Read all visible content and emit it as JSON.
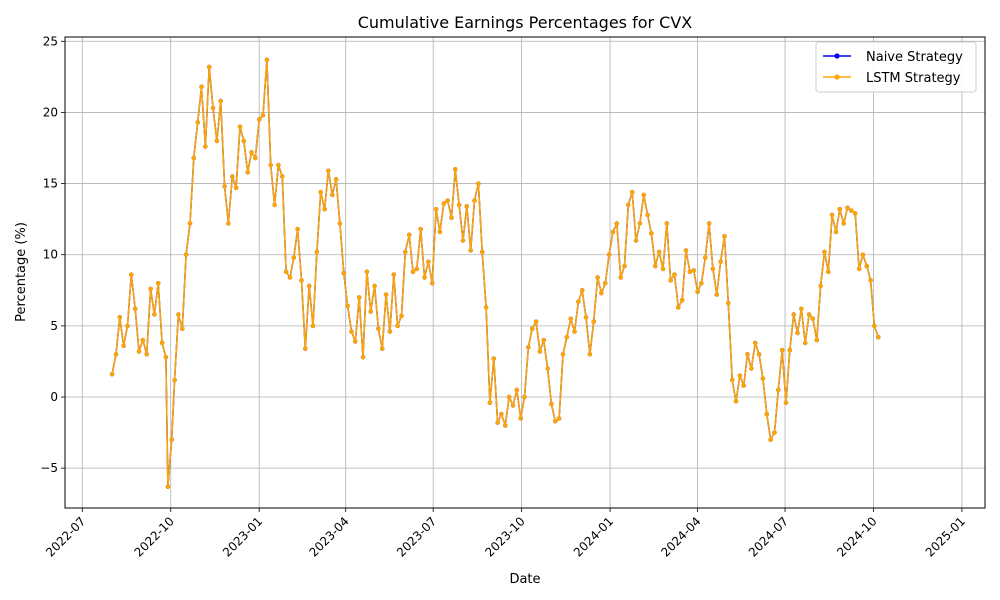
{
  "chart_data": {
    "type": "line",
    "title": "Cumulative Earnings Percentages for CVX",
    "xlabel": "Date",
    "ylabel": "Percentage (%)",
    "xlim": [
      "2022-06-13",
      "2025-01-25"
    ],
    "ylim": [
      -7.8,
      25.3
    ],
    "grid": true,
    "legend_position": "top-right",
    "x_ticks": [
      "2022-07",
      "2022-10",
      "2023-01",
      "2023-04",
      "2023-07",
      "2023-10",
      "2024-01",
      "2024-04",
      "2024-07",
      "2024-10",
      "2025-01"
    ],
    "y_ticks": [
      -5,
      0,
      5,
      10,
      15,
      20,
      25
    ],
    "series": [
      {
        "name": "Naive Strategy",
        "color": "#0000ff",
        "marker": "circle",
        "points": [
          [
            "2022-08-01",
            1.6
          ],
          [
            "2022-08-05",
            3.0
          ],
          [
            "2022-08-09",
            5.6
          ],
          [
            "2022-08-13",
            3.6
          ],
          [
            "2022-08-17",
            5.0
          ],
          [
            "2022-08-21",
            8.6
          ],
          [
            "2022-08-25",
            6.2
          ],
          [
            "2022-08-29",
            3.2
          ],
          [
            "2022-09-02",
            4.0
          ],
          [
            "2022-09-06",
            3.0
          ],
          [
            "2022-09-10",
            7.6
          ],
          [
            "2022-09-14",
            5.8
          ],
          [
            "2022-09-18",
            8.0
          ],
          [
            "2022-09-22",
            3.8
          ],
          [
            "2022-09-26",
            2.8
          ],
          [
            "2022-09-28",
            -6.3
          ],
          [
            "2022-10-02",
            -3.0
          ],
          [
            "2022-10-05",
            1.2
          ],
          [
            "2022-10-09",
            5.8
          ],
          [
            "2022-10-13",
            4.8
          ],
          [
            "2022-10-17",
            10.0
          ],
          [
            "2022-10-21",
            12.2
          ],
          [
            "2022-10-25",
            16.8
          ],
          [
            "2022-10-29",
            19.3
          ],
          [
            "2022-11-02",
            21.8
          ],
          [
            "2022-11-06",
            17.6
          ],
          [
            "2022-11-10",
            23.2
          ],
          [
            "2022-11-14",
            20.3
          ],
          [
            "2022-11-18",
            18.0
          ],
          [
            "2022-11-22",
            20.8
          ],
          [
            "2022-11-26",
            14.8
          ],
          [
            "2022-11-30",
            12.2
          ],
          [
            "2022-12-04",
            15.5
          ],
          [
            "2022-12-08",
            14.7
          ],
          [
            "2022-12-12",
            19.0
          ],
          [
            "2022-12-16",
            18.0
          ],
          [
            "2022-12-20",
            15.8
          ],
          [
            "2022-12-24",
            17.2
          ],
          [
            "2022-12-28",
            16.8
          ],
          [
            "2023-01-01",
            19.5
          ],
          [
            "2023-01-05",
            19.8
          ],
          [
            "2023-01-09",
            23.7
          ],
          [
            "2023-01-13",
            16.3
          ],
          [
            "2023-01-17",
            13.5
          ],
          [
            "2023-01-21",
            16.3
          ],
          [
            "2023-01-25",
            15.5
          ],
          [
            "2023-01-29",
            8.8
          ],
          [
            "2023-02-02",
            8.4
          ],
          [
            "2023-02-06",
            9.8
          ],
          [
            "2023-02-10",
            11.8
          ],
          [
            "2023-02-14",
            8.2
          ],
          [
            "2023-02-18",
            3.4
          ],
          [
            "2023-02-22",
            7.8
          ],
          [
            "2023-02-26",
            5.0
          ],
          [
            "2023-03-02",
            10.2
          ],
          [
            "2023-03-06",
            14.4
          ],
          [
            "2023-03-10",
            13.2
          ],
          [
            "2023-03-14",
            15.9
          ],
          [
            "2023-03-18",
            14.2
          ],
          [
            "2023-03-22",
            15.3
          ],
          [
            "2023-03-26",
            12.2
          ],
          [
            "2023-03-30",
            8.7
          ],
          [
            "2023-04-03",
            6.4
          ],
          [
            "2023-04-07",
            4.6
          ],
          [
            "2023-04-11",
            3.9
          ],
          [
            "2023-04-15",
            7.0
          ],
          [
            "2023-04-19",
            2.8
          ],
          [
            "2023-04-23",
            8.8
          ],
          [
            "2023-04-27",
            6.0
          ],
          [
            "2023-05-01",
            7.8
          ],
          [
            "2023-05-05",
            4.8
          ],
          [
            "2023-05-09",
            3.4
          ],
          [
            "2023-05-13",
            7.2
          ],
          [
            "2023-05-17",
            4.6
          ],
          [
            "2023-05-21",
            8.6
          ],
          [
            "2023-05-25",
            5.0
          ],
          [
            "2023-05-29",
            5.7
          ],
          [
            "2023-06-02",
            10.2
          ],
          [
            "2023-06-06",
            11.4
          ],
          [
            "2023-06-10",
            8.8
          ],
          [
            "2023-06-14",
            9.0
          ],
          [
            "2023-06-18",
            11.8
          ],
          [
            "2023-06-22",
            8.4
          ],
          [
            "2023-06-26",
            9.5
          ],
          [
            "2023-06-30",
            8.0
          ],
          [
            "2023-07-04",
            13.2
          ],
          [
            "2023-07-08",
            11.6
          ],
          [
            "2023-07-12",
            13.6
          ],
          [
            "2023-07-16",
            13.8
          ],
          [
            "2023-07-20",
            12.6
          ],
          [
            "2023-07-24",
            16.0
          ],
          [
            "2023-07-28",
            13.5
          ],
          [
            "2023-08-01",
            11.0
          ],
          [
            "2023-08-05",
            13.4
          ],
          [
            "2023-08-09",
            10.3
          ],
          [
            "2023-08-13",
            13.8
          ],
          [
            "2023-08-17",
            15.0
          ],
          [
            "2023-08-21",
            10.2
          ],
          [
            "2023-08-25",
            6.3
          ],
          [
            "2023-08-29",
            -0.4
          ],
          [
            "2023-09-02",
            2.7
          ],
          [
            "2023-09-06",
            -1.8
          ],
          [
            "2023-09-10",
            -1.2
          ],
          [
            "2023-09-14",
            -2.0
          ],
          [
            "2023-09-18",
            0.0
          ],
          [
            "2023-09-22",
            -0.6
          ],
          [
            "2023-09-26",
            0.5
          ],
          [
            "2023-09-30",
            -1.5
          ],
          [
            "2023-10-04",
            0.0
          ],
          [
            "2023-10-08",
            3.5
          ],
          [
            "2023-10-12",
            4.8
          ],
          [
            "2023-10-16",
            5.3
          ],
          [
            "2023-10-20",
            3.2
          ],
          [
            "2023-10-24",
            4.0
          ],
          [
            "2023-10-28",
            2.0
          ],
          [
            "2023-11-01",
            -0.5
          ],
          [
            "2023-11-05",
            -1.7
          ],
          [
            "2023-11-09",
            -1.5
          ],
          [
            "2023-11-13",
            3.0
          ],
          [
            "2023-11-17",
            4.2
          ],
          [
            "2023-11-21",
            5.5
          ],
          [
            "2023-11-25",
            4.6
          ],
          [
            "2023-11-29",
            6.7
          ],
          [
            "2023-12-03",
            7.5
          ],
          [
            "2023-12-07",
            5.6
          ],
          [
            "2023-12-11",
            3.0
          ],
          [
            "2023-12-15",
            5.3
          ],
          [
            "2023-12-19",
            8.4
          ],
          [
            "2023-12-23",
            7.3
          ],
          [
            "2023-12-27",
            8.0
          ],
          [
            "2023-12-31",
            10.0
          ],
          [
            "2024-01-04",
            11.6
          ],
          [
            "2024-01-08",
            12.2
          ],
          [
            "2024-01-12",
            8.4
          ],
          [
            "2024-01-16",
            9.2
          ],
          [
            "2024-01-20",
            13.5
          ],
          [
            "2024-01-24",
            14.4
          ],
          [
            "2024-01-28",
            11.0
          ],
          [
            "2024-02-01",
            12.2
          ],
          [
            "2024-02-05",
            14.2
          ],
          [
            "2024-02-09",
            12.8
          ],
          [
            "2024-02-13",
            11.5
          ],
          [
            "2024-02-17",
            9.2
          ],
          [
            "2024-02-21",
            10.2
          ],
          [
            "2024-02-25",
            9.0
          ],
          [
            "2024-02-29",
            12.2
          ],
          [
            "2024-03-04",
            8.2
          ],
          [
            "2024-03-08",
            8.6
          ],
          [
            "2024-03-12",
            6.3
          ],
          [
            "2024-03-16",
            6.8
          ],
          [
            "2024-03-20",
            10.3
          ],
          [
            "2024-03-24",
            8.8
          ],
          [
            "2024-03-28",
            8.9
          ],
          [
            "2024-04-01",
            7.4
          ],
          [
            "2024-04-05",
            8.0
          ],
          [
            "2024-04-09",
            9.8
          ],
          [
            "2024-04-13",
            12.2
          ],
          [
            "2024-04-17",
            9.0
          ],
          [
            "2024-04-21",
            7.2
          ],
          [
            "2024-04-25",
            9.5
          ],
          [
            "2024-04-29",
            11.3
          ],
          [
            "2024-05-03",
            6.6
          ],
          [
            "2024-05-07",
            1.2
          ],
          [
            "2024-05-11",
            -0.3
          ],
          [
            "2024-05-15",
            1.5
          ],
          [
            "2024-05-19",
            0.8
          ],
          [
            "2024-05-23",
            3.0
          ],
          [
            "2024-05-27",
            2.0
          ],
          [
            "2024-05-31",
            3.8
          ],
          [
            "2024-06-04",
            3.0
          ],
          [
            "2024-06-08",
            1.3
          ],
          [
            "2024-06-12",
            -1.2
          ],
          [
            "2024-06-16",
            -3.0
          ],
          [
            "2024-06-20",
            -2.5
          ],
          [
            "2024-06-24",
            0.5
          ],
          [
            "2024-06-28",
            3.3
          ],
          [
            "2024-07-02",
            -0.4
          ],
          [
            "2024-07-06",
            3.3
          ],
          [
            "2024-07-10",
            5.8
          ],
          [
            "2024-07-14",
            4.5
          ],
          [
            "2024-07-18",
            6.2
          ],
          [
            "2024-07-22",
            3.8
          ],
          [
            "2024-07-26",
            5.8
          ],
          [
            "2024-07-30",
            5.5
          ],
          [
            "2024-08-03",
            4.0
          ],
          [
            "2024-08-07",
            7.8
          ],
          [
            "2024-08-11",
            10.2
          ],
          [
            "2024-08-15",
            8.8
          ],
          [
            "2024-08-19",
            12.8
          ],
          [
            "2024-08-23",
            11.6
          ],
          [
            "2024-08-27",
            13.2
          ],
          [
            "2024-08-31",
            12.2
          ],
          [
            "2024-09-04",
            13.3
          ],
          [
            "2024-09-08",
            13.1
          ],
          [
            "2024-09-12",
            12.9
          ],
          [
            "2024-09-16",
            9.0
          ],
          [
            "2024-09-20",
            10.0
          ],
          [
            "2024-09-24",
            9.2
          ],
          [
            "2024-09-28",
            8.2
          ],
          [
            "2024-10-02",
            5.0
          ],
          [
            "2024-10-06",
            4.2
          ]
        ]
      },
      {
        "name": "LSTM Strategy",
        "color": "#ffa500",
        "marker": "circle",
        "same_as": "Naive Strategy"
      }
    ]
  }
}
